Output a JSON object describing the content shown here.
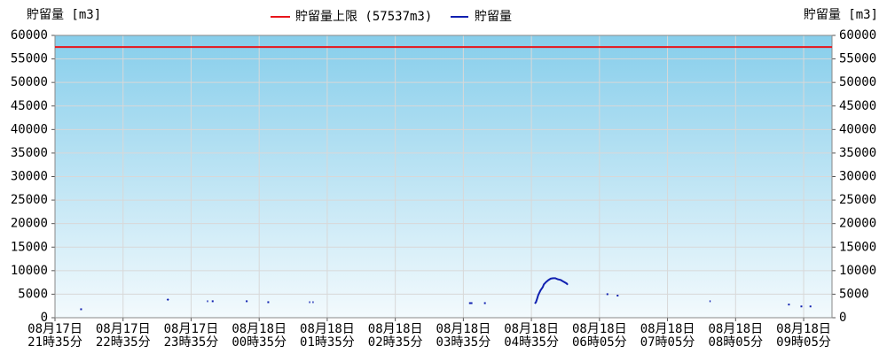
{
  "chart_data": {
    "type": "line",
    "y_label": "貯留量 [m3]",
    "y2_label": "貯留量 [m3]",
    "ylim": [
      0,
      60000
    ],
    "yticks": [
      0,
      5000,
      10000,
      15000,
      20000,
      25000,
      30000,
      35000,
      40000,
      45000,
      50000,
      55000,
      60000
    ],
    "y2lim": [
      0,
      60000
    ],
    "y2ticks": [
      0,
      5000,
      10000,
      15000,
      20000,
      25000,
      30000,
      35000,
      40000,
      45000,
      50000,
      55000,
      60000
    ],
    "xlim": [
      0,
      685
    ],
    "xticks": [
      {
        "value": 0,
        "label": [
          "08月17日",
          "21時35分"
        ]
      },
      {
        "value": 60,
        "label": [
          "08月17日",
          "22時35分"
        ]
      },
      {
        "value": 120,
        "label": [
          "08月17日",
          "23時35分"
        ]
      },
      {
        "value": 180,
        "label": [
          "08月18日",
          "00時35分"
        ]
      },
      {
        "value": 240,
        "label": [
          "08月18日",
          "01時35分"
        ]
      },
      {
        "value": 300,
        "label": [
          "08月18日",
          "02時35分"
        ]
      },
      {
        "value": 360,
        "label": [
          "08月18日",
          "03時35分"
        ]
      },
      {
        "value": 420,
        "label": [
          "08月18日",
          "04時35分"
        ]
      },
      {
        "value": 480,
        "label": [
          "08月18日",
          "06時05分"
        ]
      },
      {
        "value": 540,
        "label": [
          "08月18日",
          "07時05分"
        ]
      },
      {
        "value": 600,
        "label": [
          "08月18日",
          "08時05分"
        ]
      },
      {
        "value": 660,
        "label": [
          "08月18日",
          "09時05分"
        ]
      }
    ],
    "grid": true,
    "limit": {
      "name": "貯留量上限 (57537m3)",
      "color": "#e8141b",
      "value": 57537
    },
    "series": [
      {
        "name": "貯留量",
        "color": "#1020b0",
        "x": [
          23,
          null,
          99,
          100,
          null,
          134,
          135,
          null,
          139,
          null,
          169,
          null,
          188,
          null,
          224,
          225,
          null,
          227,
          228,
          null,
          365,
          368,
          null,
          379,
          null,
          423,
          424,
          425,
          426,
          427,
          428,
          430,
          431,
          433,
          435,
          437,
          439,
          441,
          443,
          446,
          448,
          451,
          452,
          null,
          487,
          null,
          496,
          null,
          577,
          578,
          null,
          647,
          null,
          658,
          null,
          666
        ],
        "values": [
          1800,
          null,
          3700,
          4000,
          null,
          3500,
          3500,
          null,
          3500,
          null,
          3500,
          null,
          3300,
          null,
          3300,
          3300,
          null,
          3300,
          3300,
          null,
          3100,
          3100,
          null,
          3100,
          null,
          3000,
          3300,
          4000,
          4800,
          5300,
          5800,
          6500,
          7100,
          7600,
          8000,
          8300,
          8400,
          8400,
          8200,
          8000,
          7700,
          7300,
          7000,
          null,
          5000,
          null,
          4700,
          null,
          3500,
          3500,
          null,
          2800,
          null,
          2400,
          null,
          2400
        ]
      }
    ]
  }
}
